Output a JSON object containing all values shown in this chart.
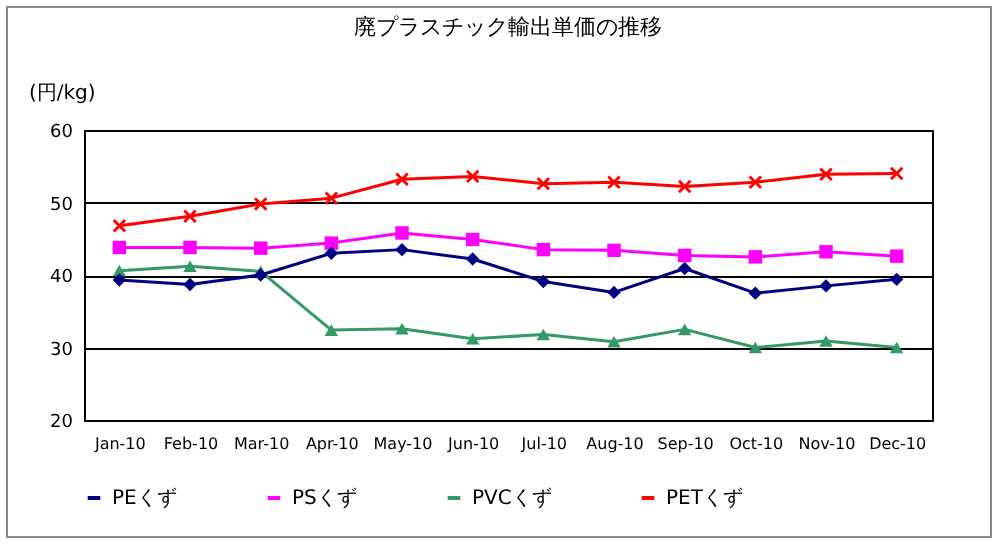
{
  "chart_data": {
    "type": "line",
    "title": "廃プラスチック輸出単価の推移",
    "ylabel": "(円/kg)",
    "categories": [
      "Jan-10",
      "Feb-10",
      "Mar-10",
      "Apr-10",
      "May-10",
      "Jun-10",
      "Jul-10",
      "Aug-10",
      "Sep-10",
      "Oct-10",
      "Nov-10",
      "Dec-10"
    ],
    "series": [
      {
        "name": "PEくず",
        "color": "#000080",
        "marker": "diamond",
        "values": [
          39.3,
          38.7,
          40.0,
          43.0,
          43.5,
          42.2,
          39.1,
          37.6,
          40.9,
          37.5,
          38.5,
          39.4
        ]
      },
      {
        "name": "PSくず",
        "color": "#ff00ff",
        "marker": "square",
        "values": [
          43.8,
          43.8,
          43.7,
          44.4,
          45.8,
          44.9,
          43.5,
          43.4,
          42.7,
          42.5,
          43.2,
          42.6
        ]
      },
      {
        "name": "PVCくず",
        "color": "#339966",
        "marker": "triangle",
        "values": [
          40.6,
          41.2,
          40.5,
          32.4,
          32.6,
          31.2,
          31.8,
          30.8,
          32.5,
          30.0,
          30.9,
          30.0
        ]
      },
      {
        "name": "PETくず",
        "color": "#ff0000",
        "marker": "cross",
        "values": [
          46.8,
          48.1,
          49.8,
          50.6,
          53.2,
          53.6,
          52.6,
          52.8,
          52.2,
          52.8,
          53.9,
          54.0
        ]
      }
    ],
    "ylim": [
      20,
      60
    ],
    "yticks": [
      20,
      30,
      40,
      50,
      60
    ],
    "grid": "y",
    "legend": "bottom",
    "line_style": "solid"
  }
}
